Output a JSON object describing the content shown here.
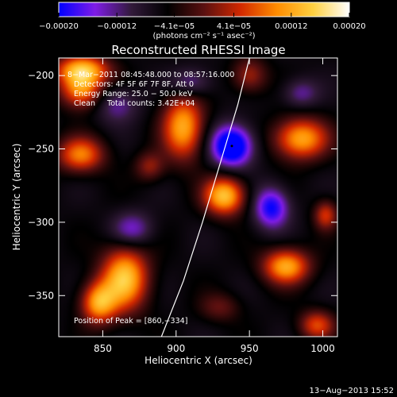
{
  "colorbar": {
    "ticks": [
      {
        "value": -0.0002,
        "label": "−0.00020"
      },
      {
        "value": -0.00012,
        "label": "−0.00012"
      },
      {
        "value": -4.1e-05,
        "label": "−4.1e−05"
      },
      {
        "value": 4.1e-05,
        "label": "4.1e−05"
      },
      {
        "value": 0.00012,
        "label": "0.00012"
      },
      {
        "value": 0.0002,
        "label": "0.00020"
      }
    ],
    "range": [
      -0.0002,
      0.0002
    ],
    "unit_label": "(photons cm⁻² s⁻¹ asec⁻²)",
    "colors": [
      "#0000ff",
      "#7f1ce6",
      "#321a3a",
      "#000000",
      "#5a1010",
      "#d22800",
      "#ff8c00",
      "#ffd040",
      "#ffffff"
    ]
  },
  "chart_data": {
    "type": "heatmap",
    "title": "Reconstructed RHESSI Image",
    "xlabel": "Heliocentric X (arcsec)",
    "ylabel": "Heliocentric Y (arcsec)",
    "xlim": [
      820,
      1010
    ],
    "ylim": [
      -378,
      -188
    ],
    "xticks": [
      {
        "value": 850,
        "label": "850"
      },
      {
        "value": 900,
        "label": "900"
      },
      {
        "value": 950,
        "label": "950"
      },
      {
        "value": 1000,
        "label": "1000"
      }
    ],
    "yticks": [
      {
        "value": -200,
        "label": "−200"
      },
      {
        "value": -250,
        "label": "−250"
      },
      {
        "value": -300,
        "label": "−300"
      },
      {
        "value": -350,
        "label": "−350"
      }
    ],
    "annotations": {
      "time_range": "8−Mar−2011 08:45:48.000 to 08:57:16.000",
      "detectors": "Detectors: 4F 5F 6F 7F 8F, Att 0",
      "energy_range": "Energy Range: 25.0 − 50.0 keV",
      "clean_counts": "Clean     Total counts: 3.42E+04",
      "peak": "Position of Peak = [860,−334]"
    },
    "peak_position": [
      860,
      -334
    ],
    "min_position": [
      938,
      -248
    ],
    "limb_curve": [
      [
        890,
        -378
      ],
      [
        905,
        -340
      ],
      [
        918,
        -300
      ],
      [
        930,
        -260
      ],
      [
        942,
        -220
      ],
      [
        950,
        -188
      ]
    ],
    "blobs": [
      {
        "x": 836,
        "y": -196,
        "amp": 0.95,
        "sx": 18,
        "sy": 10
      },
      {
        "x": 835,
        "y": -210,
        "amp": 0.8,
        "sx": 14,
        "sy": 12
      },
      {
        "x": 905,
        "y": -235,
        "amp": 0.9,
        "sx": 14,
        "sy": 22
      },
      {
        "x": 985,
        "y": -243,
        "amp": 0.9,
        "sx": 18,
        "sy": 14
      },
      {
        "x": 950,
        "y": -200,
        "amp": 0.45,
        "sx": 12,
        "sy": 12
      },
      {
        "x": 835,
        "y": -254,
        "amp": 0.75,
        "sx": 16,
        "sy": 12
      },
      {
        "x": 882,
        "y": -262,
        "amp": 0.4,
        "sx": 10,
        "sy": 10
      },
      {
        "x": 933,
        "y": -282,
        "amp": 1.0,
        "sx": 14,
        "sy": 13
      },
      {
        "x": 865,
        "y": -338,
        "amp": 1.0,
        "sx": 16,
        "sy": 22
      },
      {
        "x": 847,
        "y": -355,
        "amp": 0.85,
        "sx": 12,
        "sy": 14
      },
      {
        "x": 975,
        "y": -330,
        "amp": 0.9,
        "sx": 16,
        "sy": 12
      },
      {
        "x": 1002,
        "y": -295,
        "amp": 0.55,
        "sx": 8,
        "sy": 10
      },
      {
        "x": 996,
        "y": -370,
        "amp": 0.6,
        "sx": 12,
        "sy": 10
      },
      {
        "x": 930,
        "y": -358,
        "amp": 0.3,
        "sx": 14,
        "sy": 10
      },
      {
        "x": 938,
        "y": -248,
        "amp": -1.0,
        "sx": 14,
        "sy": 14
      },
      {
        "x": 965,
        "y": -290,
        "amp": -0.7,
        "sx": 12,
        "sy": 14
      },
      {
        "x": 870,
        "y": -305,
        "amp": -0.45,
        "sx": 14,
        "sy": 12
      },
      {
        "x": 910,
        "y": -205,
        "amp": -0.4,
        "sx": 14,
        "sy": 10
      },
      {
        "x": 860,
        "y": -220,
        "amp": -0.35,
        "sx": 14,
        "sy": 12
      },
      {
        "x": 985,
        "y": -212,
        "amp": -0.35,
        "sx": 12,
        "sy": 10
      }
    ],
    "background": -0.3
  },
  "footer": {
    "timestamp": "13−Aug−2013 15:52"
  }
}
